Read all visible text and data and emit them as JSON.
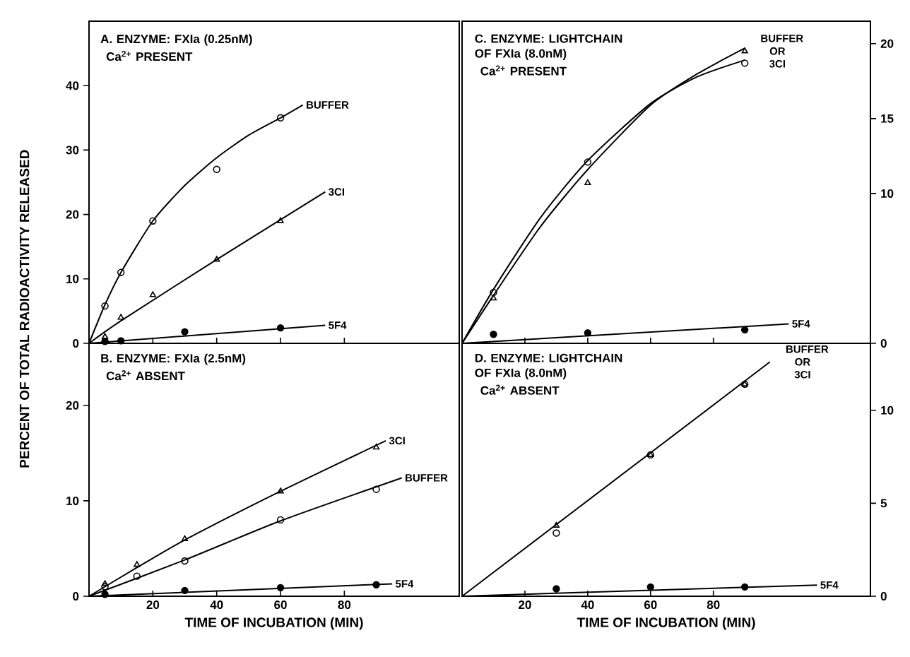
{
  "chart_data": [
    {
      "type": "scatter",
      "title": "A. ENZYME: FXIa (0.25nM)",
      "subtitle": "Ca$^{2+}$ PRESENT",
      "ylabel": "PERCENT OF TOTAL RADIOACTIVITY RELEASED",
      "xlim": [
        0,
        116
      ],
      "xticks": [
        20,
        40,
        60,
        80
      ],
      "ylim": [
        0,
        50
      ],
      "yticks": [
        0,
        10,
        20,
        30,
        40
      ],
      "tick_labels": "y",
      "line_style": "solid",
      "series": [
        {
          "type": "line",
          "name": "BUFFER",
          "color": "#000000",
          "x": [
            0,
            5,
            10,
            20,
            30,
            40,
            50,
            60,
            67
          ],
          "values": [
            0,
            6,
            11,
            19,
            24.5,
            28.8,
            32.3,
            35,
            37
          ]
        },
        {
          "marker": "circle",
          "color": "#000000",
          "x": [
            5,
            10,
            20,
            40,
            60
          ],
          "values": [
            5.8,
            11,
            19,
            27,
            35
          ]
        },
        {
          "type": "line",
          "name": "3CI",
          "color": "#000000",
          "x": [
            0,
            10,
            40,
            74
          ],
          "values": [
            0,
            3.5,
            13,
            23.5
          ]
        },
        {
          "marker": "triangle",
          "color": "#000000",
          "x": [
            5,
            10,
            20,
            40,
            60
          ],
          "values": [
            1,
            4,
            7.5,
            13,
            19
          ]
        },
        {
          "type": "line",
          "name": "5F4",
          "color": "#000000",
          "x": [
            0,
            74
          ],
          "values": [
            0,
            2.8
          ]
        },
        {
          "marker": "filled circle",
          "color": "#000000",
          "x": [
            5,
            10,
            30,
            60
          ],
          "values": [
            0.3,
            0.4,
            1.8,
            2.4
          ]
        }
      ]
    },
    {
      "type": "scatter",
      "title": "C. ENZYME: LIGHTCHAIN OF FXIa (8.0nM)",
      "subtitle": "Ca$^{2+}$ PRESENT",
      "xlim": [
        0,
        130
      ],
      "xticks": [
        20,
        40,
        60,
        80
      ],
      "ylim": [
        0,
        21.5
      ],
      "yticks": [
        0,
        10,
        15,
        20
      ],
      "tick_labels": "y",
      "line_style": "solid",
      "annotations": [
        {
          "text": "BUFFER OR 3CI",
          "x": 90,
          "y": 19.5
        }
      ],
      "series": [
        {
          "type": "line",
          "color": "#000000",
          "x": [
            0,
            10,
            25,
            40,
            60,
            75,
            90
          ],
          "values": [
            0,
            3.6,
            8.4,
            12.2,
            16.0,
            17.8,
            18.9
          ]
        },
        {
          "marker": "circle",
          "color": "#000000",
          "x": [
            10,
            40,
            90
          ],
          "values": [
            3.4,
            12.1,
            18.7
          ]
        },
        {
          "type": "line",
          "color": "#000000",
          "x": [
            0,
            10,
            25,
            40,
            60,
            75,
            90
          ],
          "values": [
            0,
            3.2,
            7.8,
            11.6,
            15.9,
            18.0,
            19.7
          ]
        },
        {
          "marker": "triangle",
          "color": "#000000",
          "x": [
            10,
            40,
            90
          ],
          "values": [
            3.0,
            10.7,
            19.5
          ]
        },
        {
          "type": "line",
          "name": "5F4",
          "color": "#000000",
          "x": [
            0,
            104
          ],
          "values": [
            0,
            1.3
          ]
        },
        {
          "marker": "filled circle",
          "color": "#000000",
          "x": [
            10,
            40,
            90
          ],
          "values": [
            0.6,
            0.7,
            0.9
          ]
        }
      ]
    },
    {
      "type": "scatter",
      "title": "B. ENZYME: FXIa (2.5nM)",
      "subtitle": "Ca$^{2+}$ ABSENT",
      "xlabel": "TIME OF INCUBATION (MIN)",
      "xlim": [
        0,
        116
      ],
      "xticks": [
        20,
        40,
        60,
        80
      ],
      "ylim": [
        0,
        26.5
      ],
      "yticks": [
        0,
        10,
        20
      ],
      "line_style": "solid",
      "series": [
        {
          "type": "line",
          "name": "3CI",
          "color": "#000000",
          "x": [
            0,
            15,
            30,
            60,
            93
          ],
          "values": [
            0,
            3,
            5.9,
            11,
            16.3
          ]
        },
        {
          "marker": "triangle",
          "color": "#000000",
          "x": [
            5,
            15,
            30,
            60,
            90
          ],
          "values": [
            1.3,
            3.3,
            6,
            11,
            15.6
          ]
        },
        {
          "type": "line",
          "name": "BUFFER",
          "color": "#000000",
          "x": [
            0,
            30,
            60,
            98
          ],
          "values": [
            0,
            3.8,
            7.9,
            12.4
          ]
        },
        {
          "marker": "circle",
          "color": "#000000",
          "x": [
            5,
            15,
            30,
            60,
            90
          ],
          "values": [
            1,
            2.1,
            3.7,
            8,
            11.2
          ]
        },
        {
          "type": "line",
          "name": "5F4",
          "color": "#000000",
          "x": [
            0,
            95
          ],
          "values": [
            0,
            1.3
          ]
        },
        {
          "marker": "filled circle",
          "color": "#000000",
          "x": [
            5,
            30,
            60,
            90
          ],
          "values": [
            0.2,
            0.6,
            0.9,
            1.2
          ]
        }
      ]
    },
    {
      "type": "scatter",
      "title": "D. ENZYME: LIGHTCHAIN OF FXIa (8.0nM)",
      "subtitle": "Ca$^{2+}$ ABSENT",
      "xlabel": "TIME OF INCUBATION (MIN)",
      "xlim": [
        0,
        130
      ],
      "xticks": [
        20,
        40,
        60,
        80
      ],
      "ylim": [
        0,
        13.6
      ],
      "yticks": [
        0,
        5,
        10
      ],
      "line_style": "solid",
      "annotations": [
        {
          "text": "BUFFER OR 3CI",
          "x": 98,
          "y": 12.6
        }
      ],
      "series": [
        {
          "type": "line",
          "color": "#000000",
          "x": [
            0,
            98
          ],
          "values": [
            0,
            12.6
          ]
        },
        {
          "marker": "circle",
          "color": "#000000",
          "x": [
            30,
            60,
            90
          ],
          "values": [
            3.4,
            7.6,
            11.4
          ]
        },
        {
          "marker": "triangle",
          "color": "#000000",
          "x": [
            30,
            60,
            90
          ],
          "values": [
            3.8,
            7.6,
            11.4
          ]
        },
        {
          "type": "line",
          "name": "5F4",
          "color": "#000000",
          "x": [
            0,
            113
          ],
          "values": [
            0,
            0.6
          ]
        },
        {
          "marker": "filled circle",
          "color": "#000000",
          "x": [
            30,
            60,
            90
          ],
          "values": [
            0.4,
            0.5,
            0.5
          ]
        }
      ]
    }
  ]
}
